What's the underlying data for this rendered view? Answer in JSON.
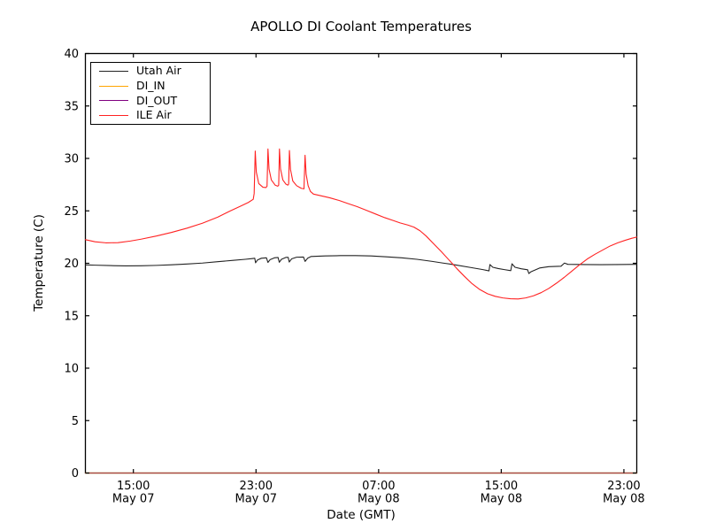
{
  "chart_data": {
    "type": "line",
    "title": "APOLLO DI Coolant Temperatures",
    "xlabel": "Date (GMT)",
    "ylabel": "Temperature (C)",
    "background_color": "#ffffff",
    "frame_color": "#000000",
    "grid": false,
    "ylim": [
      0,
      40
    ],
    "yticks": [
      0,
      5,
      10,
      15,
      20,
      25,
      30,
      35,
      40
    ],
    "xlim_hours_from_may07_noon": [
      -0.13,
      35.84
    ],
    "xticks": [
      {
        "t": 3,
        "time": "15:00",
        "date": "May 07"
      },
      {
        "t": 11,
        "time": "23:00",
        "date": "May 07"
      },
      {
        "t": 19,
        "time": "07:00",
        "date": "May 08"
      },
      {
        "t": 27,
        "time": "15:00",
        "date": "May 08"
      },
      {
        "t": 35,
        "time": "23:00",
        "date": "May 08"
      }
    ],
    "legend_position": "upper-left",
    "series": [
      {
        "name": "Utah Air",
        "color": "#222222",
        "points": [
          [
            -0.13,
            19.85
          ],
          [
            0.5,
            19.82
          ],
          [
            1.5,
            19.78
          ],
          [
            2.5,
            19.75
          ],
          [
            3.5,
            19.76
          ],
          [
            4.5,
            19.8
          ],
          [
            5.5,
            19.86
          ],
          [
            6.5,
            19.93
          ],
          [
            7.5,
            20.02
          ],
          [
            8.5,
            20.15
          ],
          [
            9.5,
            20.28
          ],
          [
            10.3,
            20.38
          ],
          [
            10.75,
            20.45
          ],
          [
            10.92,
            20.48
          ],
          [
            10.97,
            20.05
          ],
          [
            11.1,
            20.32
          ],
          [
            11.35,
            20.48
          ],
          [
            11.68,
            20.52
          ],
          [
            11.78,
            20.08
          ],
          [
            11.92,
            20.35
          ],
          [
            12.2,
            20.52
          ],
          [
            12.44,
            20.55
          ],
          [
            12.52,
            20.1
          ],
          [
            12.66,
            20.38
          ],
          [
            12.95,
            20.56
          ],
          [
            13.1,
            20.56
          ],
          [
            13.17,
            20.12
          ],
          [
            13.32,
            20.42
          ],
          [
            13.65,
            20.58
          ],
          [
            14.1,
            20.6
          ],
          [
            14.2,
            20.18
          ],
          [
            14.38,
            20.5
          ],
          [
            14.6,
            20.65
          ],
          [
            15.5,
            20.7
          ],
          [
            16.5,
            20.73
          ],
          [
            17.5,
            20.73
          ],
          [
            18.5,
            20.7
          ],
          [
            19.5,
            20.62
          ],
          [
            20.5,
            20.52
          ],
          [
            21.5,
            20.38
          ],
          [
            22.5,
            20.18
          ],
          [
            23.2,
            20.02
          ],
          [
            24,
            19.85
          ],
          [
            25,
            19.6
          ],
          [
            25.8,
            19.4
          ],
          [
            26.2,
            19.28
          ],
          [
            26.26,
            19.88
          ],
          [
            26.45,
            19.62
          ],
          [
            26.8,
            19.5
          ],
          [
            27.2,
            19.4
          ],
          [
            27.62,
            19.3
          ],
          [
            27.7,
            19.95
          ],
          [
            27.9,
            19.62
          ],
          [
            28.3,
            19.48
          ],
          [
            28.72,
            19.38
          ],
          [
            28.8,
            19.02
          ],
          [
            28.95,
            19.2
          ],
          [
            29.5,
            19.55
          ],
          [
            30.1,
            19.68
          ],
          [
            30.9,
            19.72
          ],
          [
            31.12,
            20.02
          ],
          [
            31.35,
            19.9
          ],
          [
            32.5,
            19.88
          ],
          [
            33.5,
            19.87
          ],
          [
            34.5,
            19.88
          ],
          [
            35.84,
            19.9
          ]
        ]
      },
      {
        "name": "DI_IN",
        "color": "#ffa500",
        "points": [
          [
            -0.13,
            0
          ],
          [
            35.84,
            0
          ]
        ]
      },
      {
        "name": "DI_OUT",
        "color": "#800080",
        "points": [
          [
            -0.13,
            0
          ],
          [
            35.84,
            0
          ]
        ]
      },
      {
        "name": "ILE Air",
        "color": "#ff2222",
        "points": [
          [
            -0.13,
            22.25
          ],
          [
            0.5,
            22.05
          ],
          [
            1.2,
            21.95
          ],
          [
            2.0,
            21.97
          ],
          [
            2.8,
            22.12
          ],
          [
            3.5,
            22.3
          ],
          [
            4.5,
            22.6
          ],
          [
            5.5,
            22.95
          ],
          [
            6.5,
            23.35
          ],
          [
            7.5,
            23.82
          ],
          [
            8.5,
            24.4
          ],
          [
            9.3,
            24.98
          ],
          [
            10.0,
            25.45
          ],
          [
            10.5,
            25.8
          ],
          [
            10.82,
            26.1
          ],
          [
            10.88,
            26.65
          ],
          [
            10.95,
            30.7
          ],
          [
            11.02,
            28.7
          ],
          [
            11.18,
            27.6
          ],
          [
            11.45,
            27.25
          ],
          [
            11.65,
            27.22
          ],
          [
            11.72,
            27.35
          ],
          [
            11.78,
            30.9
          ],
          [
            11.85,
            29.0
          ],
          [
            12.0,
            27.95
          ],
          [
            12.25,
            27.45
          ],
          [
            12.42,
            27.35
          ],
          [
            12.48,
            27.45
          ],
          [
            12.53,
            30.9
          ],
          [
            12.6,
            29.0
          ],
          [
            12.75,
            27.95
          ],
          [
            12.95,
            27.55
          ],
          [
            13.08,
            27.45
          ],
          [
            13.13,
            27.55
          ],
          [
            13.18,
            30.75
          ],
          [
            13.25,
            28.95
          ],
          [
            13.4,
            27.85
          ],
          [
            13.65,
            27.4
          ],
          [
            13.95,
            27.15
          ],
          [
            14.13,
            27.1
          ],
          [
            14.2,
            30.3
          ],
          [
            14.27,
            28.5
          ],
          [
            14.4,
            27.4
          ],
          [
            14.55,
            26.85
          ],
          [
            14.75,
            26.6
          ],
          [
            15.2,
            26.45
          ],
          [
            15.8,
            26.25
          ],
          [
            16.4,
            26.0
          ],
          [
            17.0,
            25.7
          ],
          [
            17.6,
            25.4
          ],
          [
            18.2,
            25.05
          ],
          [
            18.8,
            24.7
          ],
          [
            19.4,
            24.35
          ],
          [
            19.9,
            24.1
          ],
          [
            20.4,
            23.85
          ],
          [
            20.9,
            23.65
          ],
          [
            21.3,
            23.45
          ],
          [
            21.7,
            23.1
          ],
          [
            22.1,
            22.6
          ],
          [
            22.6,
            21.85
          ],
          [
            23.1,
            21.1
          ],
          [
            23.6,
            20.3
          ],
          [
            24.1,
            19.5
          ],
          [
            24.6,
            18.75
          ],
          [
            25.1,
            18.05
          ],
          [
            25.6,
            17.5
          ],
          [
            26.1,
            17.1
          ],
          [
            26.6,
            16.85
          ],
          [
            27.1,
            16.7
          ],
          [
            27.6,
            16.62
          ],
          [
            28.1,
            16.6
          ],
          [
            28.6,
            16.7
          ],
          [
            29.1,
            16.9
          ],
          [
            29.6,
            17.2
          ],
          [
            30.1,
            17.6
          ],
          [
            30.6,
            18.1
          ],
          [
            31.1,
            18.65
          ],
          [
            31.6,
            19.25
          ],
          [
            32.1,
            19.85
          ],
          [
            32.6,
            20.4
          ],
          [
            33.1,
            20.85
          ],
          [
            33.6,
            21.25
          ],
          [
            34.1,
            21.65
          ],
          [
            34.6,
            21.95
          ],
          [
            35.1,
            22.2
          ],
          [
            35.5,
            22.38
          ],
          [
            35.84,
            22.5
          ]
        ]
      }
    ]
  }
}
